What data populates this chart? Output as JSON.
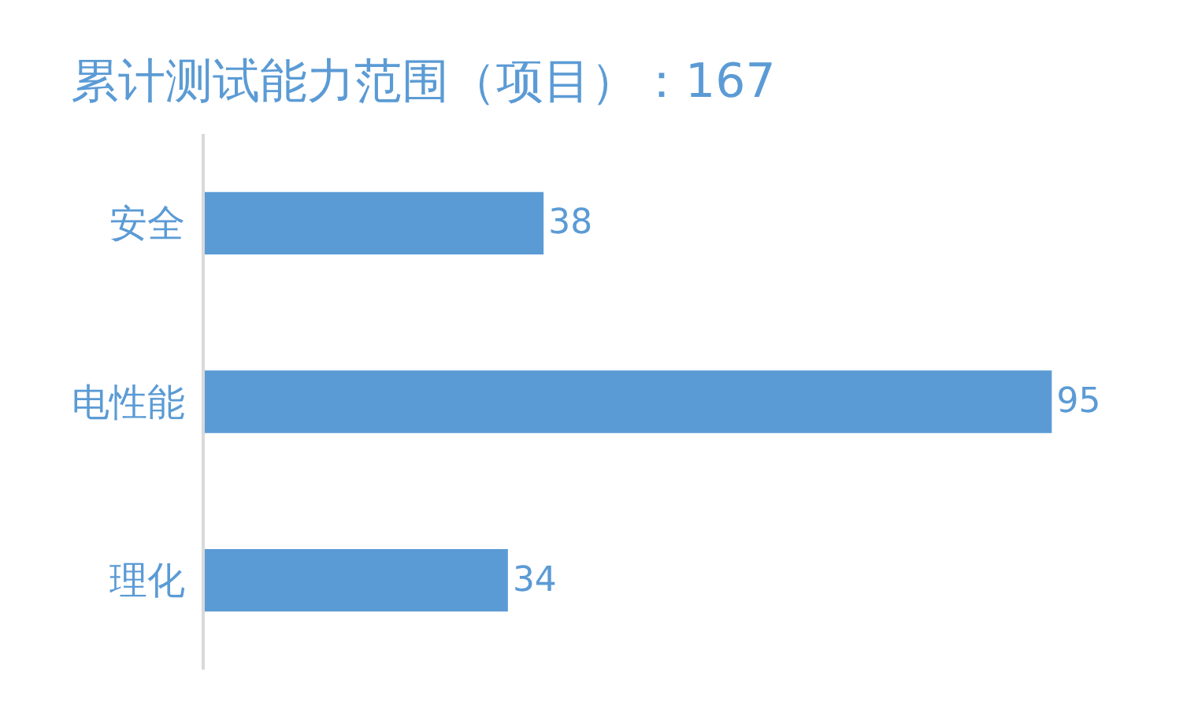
{
  "chart_data": {
    "type": "bar",
    "title": "累计测试能力范围（项目）：167",
    "orientation": "horizontal",
    "categories": [
      "安全",
      "电性能",
      "理化"
    ],
    "values": [
      38,
      95,
      34
    ],
    "color": "#5b9bd5",
    "data_labels": true
  }
}
